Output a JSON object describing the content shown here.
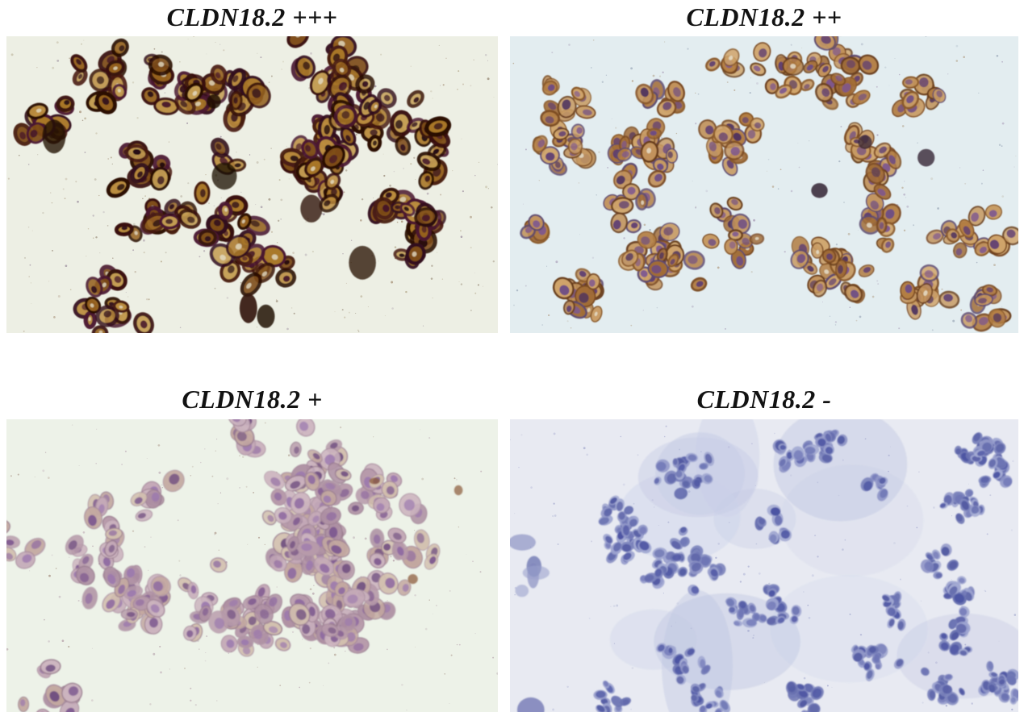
{
  "panels": [
    {
      "id": "cldn18-2-strong",
      "label": "CLDN18.2 +++",
      "render": {
        "seed": 7,
        "background": "#edefe4",
        "blur": 0.6,
        "speckles": 300,
        "speckleColors": [
          "#8a6b4c",
          "#77617e",
          "#9c8a66",
          "#6f5a44"
        ],
        "spreadX": [
          0.03,
          0.88
        ],
        "spreadY": [
          0.05,
          0.9
        ],
        "clusters": 26,
        "cellsPerCluster": [
          3,
          15
        ],
        "cellRadius": [
          8,
          15
        ],
        "cytoplasm": [
          "#95611e",
          "#a97728",
          "#bb8c3e",
          "#7d4b16",
          "#c49d52"
        ],
        "membrane": [
          "#381208",
          "#481b12",
          "#2a0c04",
          "#4a1630",
          "#33101c"
        ],
        "membraneWidth": [
          3,
          5.5
        ],
        "nucleus": [
          "#2e0e1c",
          "#1f0910",
          "#431429"
        ],
        "nucleusScale": 0.4,
        "lumen": {
          "chance": 0.22,
          "color": "#e3dcc4"
        },
        "debris": {
          "count": 7,
          "colors": [
            "#241106",
            "#351a0b",
            "#1d0d04"
          ],
          "r": [
            7,
            22
          ],
          "opacity": [
            0.75,
            1
          ],
          "spreadX": [
            0.02,
            0.75
          ],
          "spreadY": [
            0.1,
            0.98
          ]
        }
      }
    },
    {
      "id": "cldn18-2-moderate",
      "label": "CLDN18.2 ++",
      "render": {
        "seed": 13,
        "background": "#e3edf0",
        "blur": 0.6,
        "speckles": 180,
        "speckleColors": [
          "#8f7ba0",
          "#9c7c56",
          "#7c8aa0"
        ],
        "spreadX": [
          0.02,
          0.96
        ],
        "spreadY": [
          0.03,
          0.95
        ],
        "clusters": 32,
        "cellsPerCluster": [
          4,
          14
        ],
        "cellRadius": [
          8,
          13
        ],
        "cytoplasm": [
          "#c2925b",
          "#b37e43",
          "#d0a46a",
          "#a16c36",
          "#c89b63"
        ],
        "membrane": [
          "#7b4a23",
          "#8b5a2b",
          "#693d1b",
          "#5e4a6e"
        ],
        "membraneWidth": [
          1.4,
          2.8
        ],
        "nucleus": [
          "#6b4b86",
          "#5b3b73",
          "#7c5691",
          "#4b305f"
        ],
        "nucleusScale": 0.5,
        "lumen": {
          "chance": 0.12,
          "color": "#e9e2cf"
        },
        "debris": {
          "count": 3,
          "colors": [
            "#2b1b10",
            "#3a2a3a"
          ],
          "r": [
            4,
            11
          ],
          "opacity": [
            0.7,
            0.95
          ],
          "spreadX": [
            0.1,
            0.95
          ],
          "spreadY": [
            0.1,
            0.9
          ]
        }
      }
    },
    {
      "id": "cldn18-2-weak",
      "label": "CLDN18.2 +",
      "render": {
        "seed": 21,
        "background": "#edf2e8",
        "blur": 0.7,
        "speckles": 170,
        "speckleColors": [
          "#9b7b8c",
          "#8b6b5b",
          "#a98ca0"
        ],
        "spreadX": [
          0.02,
          0.9
        ],
        "spreadY": [
          0.02,
          0.96
        ],
        "clusters": 27,
        "cellsPerCluster": [
          5,
          17
        ],
        "cellRadius": [
          9,
          14
        ],
        "cytoplasm": [
          "#c4a9b7",
          "#b79aaa",
          "#ccb4bf",
          "#ae90a3",
          "#d2bfae",
          "#c3a8a0"
        ],
        "membrane": [
          "#a5889b",
          "#997c8f",
          "#b096a6"
        ],
        "membraneWidth": [
          0.8,
          1.6
        ],
        "nucleus": [
          "#8e69a1",
          "#7d588f",
          "#9b78ae",
          "#6e4c7f"
        ],
        "nucleusScale": 0.5,
        "debris": {
          "count": 3,
          "colors": [
            "#8b5b3b"
          ],
          "r": [
            3,
            7
          ],
          "opacity": [
            0.5,
            0.8
          ],
          "spreadX": [
            0.6,
            0.95
          ],
          "spreadY": [
            0.2,
            0.8
          ]
        }
      }
    },
    {
      "id": "cldn18-2-negative",
      "label": "CLDN18.2 -",
      "render": {
        "seed": 29,
        "background": "#e8eaf2",
        "blur": 0.9,
        "speckles": 130,
        "speckleColors": [
          "#8a90c0",
          "#a8aed2"
        ],
        "washes": {
          "count": 12,
          "colors": [
            "#c4cae4",
            "#b7bede",
            "#ced3ea"
          ],
          "r": [
            35,
            100
          ],
          "opacity": [
            0.25,
            0.5
          ],
          "spreadX": [
            0.22,
            0.95
          ],
          "spreadY": [
            0.05,
            0.95
          ]
        },
        "spreadX": [
          0.18,
          0.97
        ],
        "spreadY": [
          0.03,
          0.97
        ],
        "clusters": 34,
        "cellsPerCluster": [
          4,
          15
        ],
        "cellRadius": [
          5,
          9
        ],
        "cytoplasm": [
          "#9096c7",
          "#7c84bc",
          "#a4abd3",
          "#6b73b1",
          "#9ca3d0"
        ],
        "membrane": [
          "#7c84bc",
          "#8d94c6"
        ],
        "membraneWidth": [
          0,
          0.6
        ],
        "nucleus": [
          "#5e65a9",
          "#5058a1",
          "#6e75b5",
          "#474fa0"
        ],
        "nucleusScale": 0.72,
        "debris": {
          "count": 6,
          "colors": [
            "#7e85bc",
            "#666ead",
            "#9aa1cc"
          ],
          "r": [
            7,
            18
          ],
          "opacity": [
            0.55,
            0.85
          ],
          "spreadX": [
            0.0,
            0.06
          ],
          "spreadY": [
            0.05,
            1
          ]
        }
      }
    }
  ]
}
